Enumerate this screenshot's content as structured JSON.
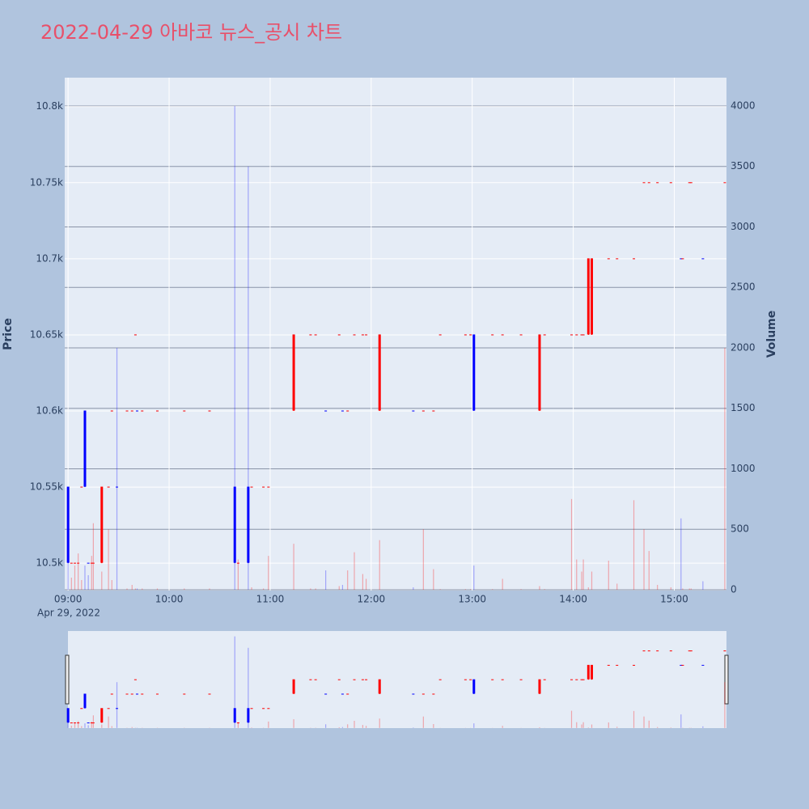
{
  "chart_data": {
    "type": "candlestick",
    "title": "2022-04-29 아바코 뉴스_공시 차트",
    "y_label": "Price",
    "y2_label": "Volume",
    "x_date_label": "Apr 29, 2022",
    "increasing_color": "#ff0000",
    "decreasing_color": "#0000ff",
    "x": [
      "09:00",
      "09:02",
      "09:04",
      "09:06",
      "09:08",
      "09:10",
      "09:12",
      "09:14",
      "09:15",
      "09:20",
      "09:24",
      "09:26",
      "09:29",
      "09:35",
      "09:38",
      "09:40",
      "09:41",
      "09:44",
      "09:53",
      "10:09",
      "10:24",
      "10:39",
      "10:41",
      "10:47",
      "10:49",
      "10:56",
      "10:59",
      "11:14",
      "11:24",
      "11:27",
      "11:33",
      "11:41",
      "11:43",
      "11:46",
      "11:50",
      "11:55",
      "11:57",
      "12:05",
      "12:25",
      "12:31",
      "12:37",
      "12:41",
      "12:56",
      "12:59",
      "13:01",
      "13:12",
      "13:18",
      "13:29",
      "13:40",
      "13:43",
      "13:59",
      "14:02",
      "14:05",
      "14:06",
      "14:09",
      "14:11",
      "14:21",
      "14:26",
      "14:36",
      "14:42",
      "14:45",
      "14:50",
      "14:58",
      "15:04",
      "15:05",
      "15:09",
      "15:10",
      "15:17",
      "15:30"
    ],
    "open": [
      10550,
      10500,
      10500,
      10500,
      10550,
      10600,
      10500,
      10500,
      10500,
      10500,
      10550,
      10600,
      10550,
      10600,
      10600,
      10650,
      10600,
      10600,
      10600,
      10600,
      10600,
      10550,
      10500,
      10550,
      10550,
      10550,
      10550,
      10600,
      10650,
      10650,
      10600,
      10650,
      10600,
      10600,
      10650,
      10650,
      10650,
      10600,
      10600,
      10600,
      10600,
      10650,
      10650,
      10650,
      10650,
      10650,
      10650,
      10650,
      10600,
      10650,
      10650,
      10650,
      10650,
      10650,
      10650,
      10650,
      10700,
      10700,
      10700,
      10750,
      10750,
      10750,
      10750,
      10700,
      10700,
      10750,
      10750,
      10700,
      10750
    ],
    "high": [
      10550,
      10500,
      10500,
      10500,
      10550,
      10600,
      10500,
      10500,
      10500,
      10550,
      10550,
      10600,
      10550,
      10600,
      10600,
      10650,
      10600,
      10600,
      10600,
      10600,
      10600,
      10550,
      10500,
      10550,
      10550,
      10550,
      10550,
      10650,
      10650,
      10650,
      10600,
      10650,
      10600,
      10600,
      10650,
      10650,
      10650,
      10650,
      10600,
      10600,
      10600,
      10650,
      10650,
      10650,
      10650,
      10650,
      10650,
      10650,
      10650,
      10650,
      10650,
      10650,
      10650,
      10650,
      10700,
      10700,
      10700,
      10700,
      10700,
      10750,
      10750,
      10750,
      10750,
      10700,
      10700,
      10750,
      10750,
      10700,
      10750
    ],
    "low": [
      10500,
      10500,
      10500,
      10500,
      10550,
      10550,
      10500,
      10500,
      10500,
      10500,
      10550,
      10600,
      10550,
      10600,
      10600,
      10650,
      10600,
      10600,
      10600,
      10600,
      10600,
      10500,
      10500,
      10500,
      10550,
      10550,
      10550,
      10600,
      10650,
      10650,
      10600,
      10650,
      10600,
      10600,
      10650,
      10650,
      10650,
      10600,
      10600,
      10600,
      10600,
      10650,
      10650,
      10650,
      10600,
      10650,
      10650,
      10650,
      10600,
      10650,
      10650,
      10650,
      10650,
      10650,
      10650,
      10650,
      10700,
      10700,
      10700,
      10750,
      10750,
      10750,
      10750,
      10700,
      10700,
      10750,
      10750,
      10700,
      10750
    ],
    "close": [
      10500,
      10500,
      10500,
      10500,
      10550,
      10550,
      10500,
      10500,
      10500,
      10550,
      10550,
      10600,
      10550,
      10600,
      10600,
      10650,
      10600,
      10600,
      10600,
      10600,
      10600,
      10500,
      10500,
      10500,
      10550,
      10550,
      10550,
      10650,
      10650,
      10650,
      10600,
      10650,
      10600,
      10600,
      10650,
      10650,
      10650,
      10650,
      10600,
      10600,
      10600,
      10650,
      10650,
      10650,
      10600,
      10650,
      10650,
      10650,
      10650,
      10650,
      10650,
      10650,
      10650,
      10650,
      10700,
      10700,
      10700,
      10700,
      10700,
      10750,
      10750,
      10750,
      10750,
      10700,
      10700,
      10750,
      10750,
      10700,
      10750
    ],
    "volume": [
      650,
      100,
      200,
      300,
      80,
      200,
      120,
      280,
      550,
      150,
      500,
      80,
      2000,
      10,
      40,
      10,
      10,
      10,
      10,
      10,
      10,
      4000,
      250,
      3500,
      20,
      10,
      280,
      380,
      10,
      10,
      160,
      30,
      40,
      160,
      310,
      130,
      90,
      410,
      20,
      500,
      170,
      5,
      5,
      5,
      200,
      5,
      90,
      5,
      30,
      5,
      750,
      250,
      150,
      250,
      20,
      150,
      240,
      50,
      740,
      500,
      320,
      40,
      20,
      590,
      10,
      10,
      10,
      70,
      2000
    ],
    "xlim": [
      "08:58",
      "15:31"
    ],
    "xticks": [
      "09:00",
      "10:00",
      "11:00",
      "12:00",
      "13:00",
      "14:00",
      "15:00"
    ],
    "ylim": [
      10482,
      10819
    ],
    "yticks": [
      {
        "value": 10500,
        "label": "10.5k"
      },
      {
        "value": 10550,
        "label": "10.55k"
      },
      {
        "value": 10600,
        "label": "10.6k"
      },
      {
        "value": 10650,
        "label": "10.65k"
      },
      {
        "value": 10700,
        "label": "10.7k"
      },
      {
        "value": 10750,
        "label": "10.75k"
      },
      {
        "value": 10800,
        "label": "10.8k"
      }
    ],
    "y2lim": [
      -7,
      4234
    ],
    "y2ticks": [
      0,
      500,
      1000,
      1500,
      2000,
      2500,
      3000,
      3500,
      4000
    ]
  }
}
